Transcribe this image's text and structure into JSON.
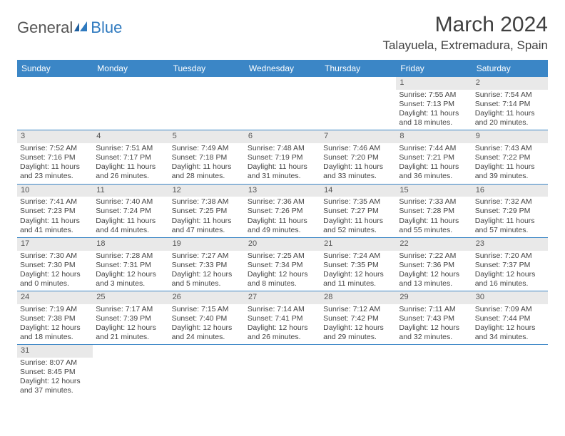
{
  "logo": {
    "text_gray": "General",
    "text_blue": "Blue"
  },
  "header": {
    "title": "March 2024",
    "location": "Talayuela, Extremadura, Spain"
  },
  "colors": {
    "header_bg": "#3b86c6",
    "header_fg": "#ffffff",
    "daynum_bg": "#e9e9e9",
    "border": "#3b86c6"
  },
  "weekdays": [
    "Sunday",
    "Monday",
    "Tuesday",
    "Wednesday",
    "Thursday",
    "Friday",
    "Saturday"
  ],
  "leading_blanks": 5,
  "trailing_blanks": 6,
  "days": [
    {
      "n": "1",
      "sunrise": "Sunrise: 7:55 AM",
      "sunset": "Sunset: 7:13 PM",
      "daylight": "Daylight: 11 hours and 18 minutes."
    },
    {
      "n": "2",
      "sunrise": "Sunrise: 7:54 AM",
      "sunset": "Sunset: 7:14 PM",
      "daylight": "Daylight: 11 hours and 20 minutes."
    },
    {
      "n": "3",
      "sunrise": "Sunrise: 7:52 AM",
      "sunset": "Sunset: 7:16 PM",
      "daylight": "Daylight: 11 hours and 23 minutes."
    },
    {
      "n": "4",
      "sunrise": "Sunrise: 7:51 AM",
      "sunset": "Sunset: 7:17 PM",
      "daylight": "Daylight: 11 hours and 26 minutes."
    },
    {
      "n": "5",
      "sunrise": "Sunrise: 7:49 AM",
      "sunset": "Sunset: 7:18 PM",
      "daylight": "Daylight: 11 hours and 28 minutes."
    },
    {
      "n": "6",
      "sunrise": "Sunrise: 7:48 AM",
      "sunset": "Sunset: 7:19 PM",
      "daylight": "Daylight: 11 hours and 31 minutes."
    },
    {
      "n": "7",
      "sunrise": "Sunrise: 7:46 AM",
      "sunset": "Sunset: 7:20 PM",
      "daylight": "Daylight: 11 hours and 33 minutes."
    },
    {
      "n": "8",
      "sunrise": "Sunrise: 7:44 AM",
      "sunset": "Sunset: 7:21 PM",
      "daylight": "Daylight: 11 hours and 36 minutes."
    },
    {
      "n": "9",
      "sunrise": "Sunrise: 7:43 AM",
      "sunset": "Sunset: 7:22 PM",
      "daylight": "Daylight: 11 hours and 39 minutes."
    },
    {
      "n": "10",
      "sunrise": "Sunrise: 7:41 AM",
      "sunset": "Sunset: 7:23 PM",
      "daylight": "Daylight: 11 hours and 41 minutes."
    },
    {
      "n": "11",
      "sunrise": "Sunrise: 7:40 AM",
      "sunset": "Sunset: 7:24 PM",
      "daylight": "Daylight: 11 hours and 44 minutes."
    },
    {
      "n": "12",
      "sunrise": "Sunrise: 7:38 AM",
      "sunset": "Sunset: 7:25 PM",
      "daylight": "Daylight: 11 hours and 47 minutes."
    },
    {
      "n": "13",
      "sunrise": "Sunrise: 7:36 AM",
      "sunset": "Sunset: 7:26 PM",
      "daylight": "Daylight: 11 hours and 49 minutes."
    },
    {
      "n": "14",
      "sunrise": "Sunrise: 7:35 AM",
      "sunset": "Sunset: 7:27 PM",
      "daylight": "Daylight: 11 hours and 52 minutes."
    },
    {
      "n": "15",
      "sunrise": "Sunrise: 7:33 AM",
      "sunset": "Sunset: 7:28 PM",
      "daylight": "Daylight: 11 hours and 55 minutes."
    },
    {
      "n": "16",
      "sunrise": "Sunrise: 7:32 AM",
      "sunset": "Sunset: 7:29 PM",
      "daylight": "Daylight: 11 hours and 57 minutes."
    },
    {
      "n": "17",
      "sunrise": "Sunrise: 7:30 AM",
      "sunset": "Sunset: 7:30 PM",
      "daylight": "Daylight: 12 hours and 0 minutes."
    },
    {
      "n": "18",
      "sunrise": "Sunrise: 7:28 AM",
      "sunset": "Sunset: 7:31 PM",
      "daylight": "Daylight: 12 hours and 3 minutes."
    },
    {
      "n": "19",
      "sunrise": "Sunrise: 7:27 AM",
      "sunset": "Sunset: 7:33 PM",
      "daylight": "Daylight: 12 hours and 5 minutes."
    },
    {
      "n": "20",
      "sunrise": "Sunrise: 7:25 AM",
      "sunset": "Sunset: 7:34 PM",
      "daylight": "Daylight: 12 hours and 8 minutes."
    },
    {
      "n": "21",
      "sunrise": "Sunrise: 7:24 AM",
      "sunset": "Sunset: 7:35 PM",
      "daylight": "Daylight: 12 hours and 11 minutes."
    },
    {
      "n": "22",
      "sunrise": "Sunrise: 7:22 AM",
      "sunset": "Sunset: 7:36 PM",
      "daylight": "Daylight: 12 hours and 13 minutes."
    },
    {
      "n": "23",
      "sunrise": "Sunrise: 7:20 AM",
      "sunset": "Sunset: 7:37 PM",
      "daylight": "Daylight: 12 hours and 16 minutes."
    },
    {
      "n": "24",
      "sunrise": "Sunrise: 7:19 AM",
      "sunset": "Sunset: 7:38 PM",
      "daylight": "Daylight: 12 hours and 18 minutes."
    },
    {
      "n": "25",
      "sunrise": "Sunrise: 7:17 AM",
      "sunset": "Sunset: 7:39 PM",
      "daylight": "Daylight: 12 hours and 21 minutes."
    },
    {
      "n": "26",
      "sunrise": "Sunrise: 7:15 AM",
      "sunset": "Sunset: 7:40 PM",
      "daylight": "Daylight: 12 hours and 24 minutes."
    },
    {
      "n": "27",
      "sunrise": "Sunrise: 7:14 AM",
      "sunset": "Sunset: 7:41 PM",
      "daylight": "Daylight: 12 hours and 26 minutes."
    },
    {
      "n": "28",
      "sunrise": "Sunrise: 7:12 AM",
      "sunset": "Sunset: 7:42 PM",
      "daylight": "Daylight: 12 hours and 29 minutes."
    },
    {
      "n": "29",
      "sunrise": "Sunrise: 7:11 AM",
      "sunset": "Sunset: 7:43 PM",
      "daylight": "Daylight: 12 hours and 32 minutes."
    },
    {
      "n": "30",
      "sunrise": "Sunrise: 7:09 AM",
      "sunset": "Sunset: 7:44 PM",
      "daylight": "Daylight: 12 hours and 34 minutes."
    },
    {
      "n": "31",
      "sunrise": "Sunrise: 8:07 AM",
      "sunset": "Sunset: 8:45 PM",
      "daylight": "Daylight: 12 hours and 37 minutes."
    }
  ]
}
